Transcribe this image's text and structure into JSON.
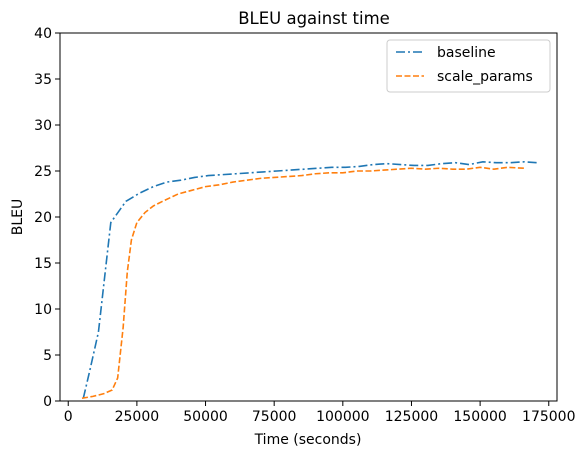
{
  "chart_data": {
    "type": "line",
    "title": "BLEU against time",
    "xlabel": "Time (seconds)",
    "ylabel": "BLEU",
    "xlim": [
      -3000,
      178000
    ],
    "ylim": [
      0,
      40
    ],
    "xticks": [
      0,
      25000,
      50000,
      75000,
      100000,
      125000,
      150000,
      175000
    ],
    "yticks": [
      0,
      5,
      10,
      15,
      20,
      25,
      30,
      35,
      40
    ],
    "grid": false,
    "legend": "top-right",
    "series": [
      {
        "name": "baseline",
        "color": "#1f77b4",
        "dash": "dashdot",
        "points": [
          [
            5500,
            0.3
          ],
          [
            8000,
            3.5
          ],
          [
            11000,
            7.5
          ],
          [
            15500,
            19.4
          ],
          [
            21000,
            21.7
          ],
          [
            26000,
            22.6
          ],
          [
            31000,
            23.3
          ],
          [
            36000,
            23.8
          ],
          [
            41000,
            24.0
          ],
          [
            46000,
            24.3
          ],
          [
            51000,
            24.5
          ],
          [
            56000,
            24.6
          ],
          [
            61000,
            24.7
          ],
          [
            66000,
            24.8
          ],
          [
            71000,
            24.9
          ],
          [
            76000,
            25.0
          ],
          [
            81000,
            25.1
          ],
          [
            86000,
            25.2
          ],
          [
            91000,
            25.3
          ],
          [
            96000,
            25.4
          ],
          [
            101000,
            25.4
          ],
          [
            106000,
            25.5
          ],
          [
            111000,
            25.7
          ],
          [
            116000,
            25.8
          ],
          [
            121000,
            25.7
          ],
          [
            126000,
            25.6
          ],
          [
            131000,
            25.6
          ],
          [
            136000,
            25.8
          ],
          [
            141000,
            25.9
          ],
          [
            146000,
            25.7
          ],
          [
            151000,
            26.0
          ],
          [
            156000,
            25.9
          ],
          [
            161000,
            25.9
          ],
          [
            166000,
            26.0
          ],
          [
            171000,
            25.9
          ]
        ]
      },
      {
        "name": "scale_params",
        "color": "#ff7f0e",
        "dash": "dashed",
        "points": [
          [
            5000,
            0.3
          ],
          [
            9000,
            0.5
          ],
          [
            13000,
            0.8
          ],
          [
            16000,
            1.2
          ],
          [
            18000,
            2.5
          ],
          [
            20000,
            8.0
          ],
          [
            21500,
            14.0
          ],
          [
            23000,
            17.5
          ],
          [
            25000,
            19.4
          ],
          [
            28000,
            20.5
          ],
          [
            31000,
            21.2
          ],
          [
            35000,
            21.8
          ],
          [
            40000,
            22.5
          ],
          [
            45000,
            22.9
          ],
          [
            50000,
            23.3
          ],
          [
            55000,
            23.5
          ],
          [
            60000,
            23.8
          ],
          [
            65000,
            24.0
          ],
          [
            70000,
            24.2
          ],
          [
            75000,
            24.3
          ],
          [
            80000,
            24.4
          ],
          [
            85000,
            24.5
          ],
          [
            90000,
            24.7
          ],
          [
            95000,
            24.8
          ],
          [
            100000,
            24.8
          ],
          [
            105000,
            25.0
          ],
          [
            110000,
            25.0
          ],
          [
            115000,
            25.1
          ],
          [
            120000,
            25.2
          ],
          [
            125000,
            25.3
          ],
          [
            130000,
            25.2
          ],
          [
            135000,
            25.3
          ],
          [
            140000,
            25.2
          ],
          [
            145000,
            25.2
          ],
          [
            150000,
            25.4
          ],
          [
            155000,
            25.2
          ],
          [
            160000,
            25.4
          ],
          [
            166000,
            25.3
          ]
        ]
      }
    ]
  }
}
